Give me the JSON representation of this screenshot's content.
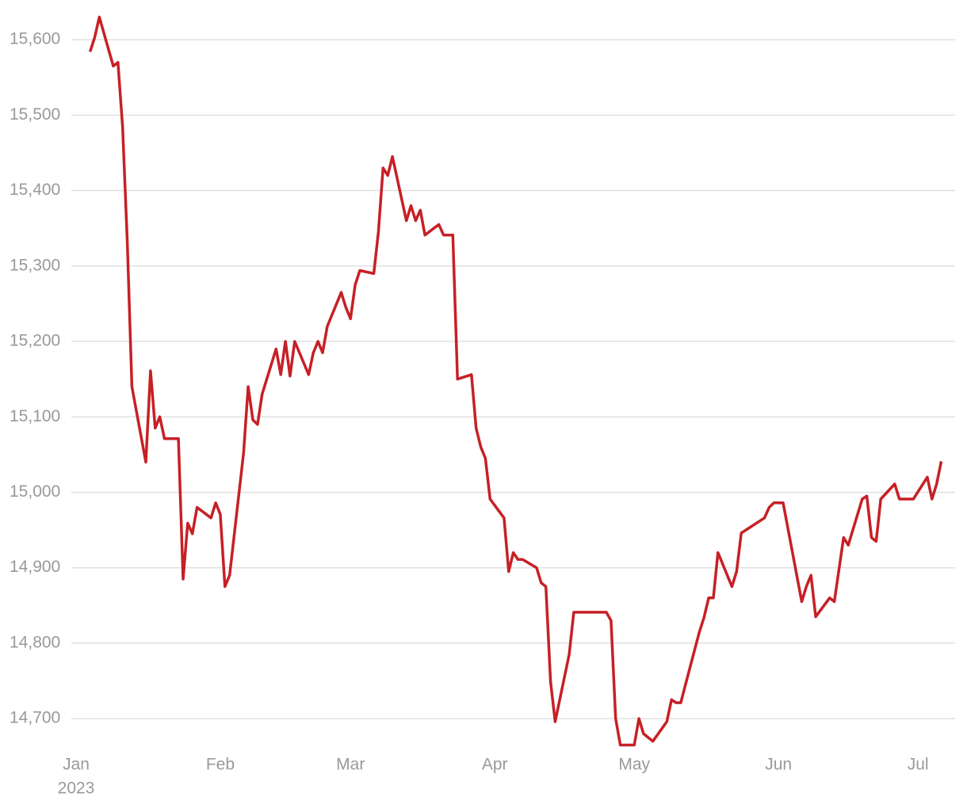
{
  "chart_data": {
    "type": "line",
    "x": [
      "2023-01-04",
      "2023-01-05",
      "2023-01-06",
      "2023-01-09",
      "2023-01-10",
      "2023-01-11",
      "2023-01-12",
      "2023-01-13",
      "2023-01-16",
      "2023-01-17",
      "2023-01-18",
      "2023-01-19",
      "2023-01-20",
      "2023-01-23",
      "2023-01-24",
      "2023-01-25",
      "2023-01-26",
      "2023-01-27",
      "2023-01-30",
      "2023-01-31",
      "2023-02-01",
      "2023-02-02",
      "2023-02-03",
      "2023-02-06",
      "2023-02-07",
      "2023-02-08",
      "2023-02-09",
      "2023-02-10",
      "2023-02-13",
      "2023-02-14",
      "2023-02-15",
      "2023-02-16",
      "2023-02-17",
      "2023-02-20",
      "2023-02-21",
      "2023-02-22",
      "2023-02-23",
      "2023-02-24",
      "2023-02-27",
      "2023-02-28",
      "2023-03-01",
      "2023-03-02",
      "2023-03-03",
      "2023-03-06",
      "2023-03-07",
      "2023-03-08",
      "2023-03-09",
      "2023-03-10",
      "2023-03-13",
      "2023-03-14",
      "2023-03-15",
      "2023-03-16",
      "2023-03-17",
      "2023-03-20",
      "2023-03-21",
      "2023-03-23",
      "2023-03-24",
      "2023-03-27",
      "2023-03-28",
      "2023-03-29",
      "2023-03-30",
      "2023-03-31",
      "2023-04-03",
      "2023-04-04",
      "2023-04-05",
      "2023-04-06",
      "2023-04-07",
      "2023-04-10",
      "2023-04-11",
      "2023-04-12",
      "2023-04-13",
      "2023-04-14",
      "2023-04-17",
      "2023-04-18",
      "2023-04-25",
      "2023-04-26",
      "2023-04-27",
      "2023-04-28",
      "2023-05-01",
      "2023-05-02",
      "2023-05-03",
      "2023-05-05",
      "2023-05-08",
      "2023-05-09",
      "2023-05-10",
      "2023-05-11",
      "2023-05-12",
      "2023-05-15",
      "2023-05-16",
      "2023-05-17",
      "2023-05-18",
      "2023-05-19",
      "2023-05-22",
      "2023-05-23",
      "2023-05-24",
      "2023-05-29",
      "2023-05-30",
      "2023-05-31",
      "2023-06-02",
      "2023-06-06",
      "2023-06-07",
      "2023-06-08",
      "2023-06-09",
      "2023-06-12",
      "2023-06-13",
      "2023-06-15",
      "2023-06-16",
      "2023-06-19",
      "2023-06-20",
      "2023-06-21",
      "2023-06-22",
      "2023-06-23",
      "2023-06-26",
      "2023-06-27",
      "2023-06-30",
      "2023-07-03",
      "2023-07-04",
      "2023-07-05",
      "2023-07-06"
    ],
    "series": [
      {
        "color": "#c62026",
        "values": [
          15584,
          15603,
          15630,
          15565,
          15570,
          15484,
          15332,
          15140,
          15040,
          15161,
          15085,
          15100,
          15071,
          15071,
          14885,
          14959,
          14945,
          14980,
          14966,
          14986,
          14971,
          14875,
          14890,
          15052,
          15140,
          15096,
          15090,
          15130,
          15190,
          15156,
          15200,
          15154,
          15200,
          15156,
          15185,
          15200,
          15185,
          15220,
          15265,
          15245,
          15230,
          15275,
          15294,
          15290,
          15345,
          15430,
          15420,
          15445,
          15360,
          15380,
          15360,
          15374,
          15341,
          15355,
          15341,
          15341,
          15150,
          15156,
          15085,
          15060,
          15045,
          14991,
          14966,
          14895,
          14920,
          14911,
          14911,
          14900,
          14880,
          14875,
          14749,
          14696,
          14785,
          14841,
          14841,
          14830,
          14700,
          14665,
          14665,
          14700,
          14680,
          14670,
          14696,
          14725,
          14721,
          14721,
          14745,
          14815,
          14834,
          14860,
          14860,
          14920,
          14875,
          14895,
          14946,
          14966,
          14980,
          14986,
          14986,
          14855,
          14875,
          14890,
          14835,
          14860,
          14855,
          14940,
          14930,
          14991,
          14995,
          14940,
          14935,
          14991,
          15011,
          14991,
          14991,
          15020,
          14991,
          15011,
          15041
        ]
      }
    ],
    "xlim": [
      "2023-01-01",
      "2023-07-10"
    ],
    "xticks": [
      {
        "value": "2023-01-01",
        "label": "Jan",
        "sublabel": "2023"
      },
      {
        "value": "2023-02-01",
        "label": "Feb"
      },
      {
        "value": "2023-03-01",
        "label": "Mar"
      },
      {
        "value": "2023-04-01",
        "label": "Apr"
      },
      {
        "value": "2023-05-01",
        "label": "May"
      },
      {
        "value": "2023-06-01",
        "label": "Jun"
      },
      {
        "value": "2023-07-01",
        "label": "Jul"
      }
    ],
    "ylim": [
      14655,
      15640
    ],
    "yticks": [
      {
        "value": 14700,
        "label": "14,700"
      },
      {
        "value": 14800,
        "label": "14,800"
      },
      {
        "value": 14900,
        "label": "14,900"
      },
      {
        "value": 15000,
        "label": "15,000"
      },
      {
        "value": 15100,
        "label": "15,100"
      },
      {
        "value": 15200,
        "label": "15,200"
      },
      {
        "value": 15300,
        "label": "15,300"
      },
      {
        "value": 15400,
        "label": "15,400"
      },
      {
        "value": 15500,
        "label": "15,500"
      },
      {
        "value": 15600,
        "label": "15,600"
      }
    ],
    "grid": true
  }
}
